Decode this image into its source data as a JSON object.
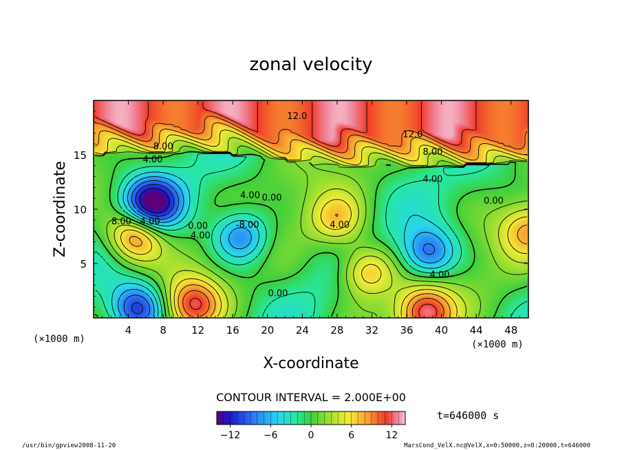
{
  "chart_data": {
    "type": "heatmap",
    "title": "zonal velocity",
    "xlabel": "X-coordinate",
    "ylabel": "Z-coordinate",
    "x_unit": "(×1000 m)",
    "z_unit": "(×1000 m)",
    "xlim": [
      0,
      50
    ],
    "ylim": [
      0,
      20
    ],
    "xticks": [
      4,
      8,
      12,
      16,
      20,
      24,
      28,
      32,
      36,
      40,
      44,
      48
    ],
    "yticks": [
      5,
      10,
      15
    ],
    "contour_interval_text": "CONTOUR INTERVAL = 2.000E+00",
    "time_text": "t=646000 s",
    "colorbar": {
      "range": [
        -14,
        14
      ],
      "ticks": [
        -12,
        -6,
        0,
        6,
        12
      ],
      "tick_labels": [
        "−12",
        "−6",
        "0",
        "6",
        "12"
      ]
    },
    "contour_labels": [
      {
        "text": "12.0",
        "x": 23.4,
        "z": 18.3
      },
      {
        "text": "12.0",
        "x": 36.7,
        "z": 16.6
      },
      {
        "text": "8.00",
        "x": 8.0,
        "z": 15.5
      },
      {
        "text": "4.00",
        "x": 6.8,
        "z": 14.3
      },
      {
        "text": "8.00",
        "x": 39.0,
        "z": 15.0
      },
      {
        "text": "4.00",
        "x": 39.0,
        "z": 12.5
      },
      {
        "text": "0.00",
        "x": 46.0,
        "z": 10.5
      },
      {
        "text": "8.00",
        "x": 3.2,
        "z": 8.6
      },
      {
        "text": "4.00",
        "x": 6.5,
        "z": 8.6
      },
      {
        "text": "4.00",
        "x": 18.0,
        "z": 11.0
      },
      {
        "text": "0.00",
        "x": 20.5,
        "z": 10.8
      },
      {
        "text": "0.00",
        "x": 12.0,
        "z": 8.2
      },
      {
        "text": "4.00",
        "x": 12.3,
        "z": 7.3
      },
      {
        "text": "-8.00",
        "x": 17.7,
        "z": 8.3
      },
      {
        "text": "4.00",
        "x": 28.3,
        "z": 8.3
      },
      {
        "text": "4.00",
        "x": 39.8,
        "z": 3.7
      },
      {
        "text": "0.00",
        "x": 21.2,
        "z": 2.0
      }
    ],
    "field_features": [
      {
        "kind": "jet",
        "value": 12,
        "z_center": 18,
        "z_width": 1.8
      },
      {
        "kind": "shear_line",
        "value": 0,
        "z": 14.5
      },
      {
        "kind": "blob",
        "value": 12,
        "x": 4.8,
        "z": 7.5
      },
      {
        "kind": "blob",
        "value": -14,
        "x": 6.6,
        "z": 10.5
      },
      {
        "kind": "blob",
        "value": -9,
        "x": 17.0,
        "z": 7.5
      },
      {
        "kind": "blob",
        "value": -9,
        "x": 38.5,
        "z": 6.0
      },
      {
        "kind": "blob",
        "value": 11,
        "x": 11.5,
        "z": 1.2
      },
      {
        "kind": "blob",
        "value": 12,
        "x": 38.2,
        "z": 0.5
      },
      {
        "kind": "blob",
        "value": -12,
        "x": 5.0,
        "z": 0.8
      },
      {
        "kind": "blob",
        "value": 7,
        "x": 28.0,
        "z": 9.0
      },
      {
        "kind": "blob",
        "value": 9,
        "x": 31.5,
        "z": 4.3
      },
      {
        "kind": "blob",
        "value": 7,
        "x": 50.0,
        "z": 8.0
      }
    ]
  },
  "footer": {
    "program": "/usr/bin/gpview",
    "date": "2008-11-20",
    "source": "MarsCond_VelX.nc@VelX,x=0:50000,z=0:20000,t=646000"
  }
}
